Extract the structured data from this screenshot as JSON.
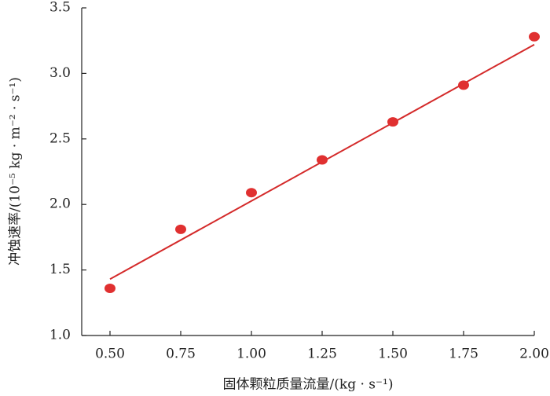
{
  "chart_data": {
    "type": "scatter",
    "x_label": "固体颗粒质量流量/(kg · s⁻¹)",
    "y_label": "冲蚀速率/(10⁻⁵ kg · m⁻² · s⁻¹)",
    "x": [
      0.5,
      0.75,
      1.0,
      1.25,
      1.5,
      1.75,
      2.0
    ],
    "values": [
      1.36,
      1.81,
      2.09,
      2.34,
      2.63,
      2.91,
      3.28
    ],
    "color": "#e03030",
    "fit_line": {
      "x": [
        0.5,
        2.0
      ],
      "y": [
        1.43,
        3.22
      ],
      "color": "#d42a2a"
    },
    "xlim": [
      0.4,
      2.0
    ],
    "xticks": [
      {
        "value": 0.5,
        "label": "0.50"
      },
      0.75,
      {
        "value": 1.0,
        "label": "1.00"
      },
      1.25,
      {
        "value": 1.5,
        "label": "1.50"
      },
      1.75,
      {
        "value": 2.0,
        "label": "2.00"
      }
    ],
    "ylim": [
      1.0,
      3.5
    ],
    "yticks": [
      {
        "value": 1.0,
        "label": "1.0"
      },
      1.5,
      {
        "value": 2.0,
        "label": "2.0"
      },
      2.5,
      {
        "value": 3.0,
        "label": "3.0"
      },
      3.5
    ],
    "grid": false
  }
}
